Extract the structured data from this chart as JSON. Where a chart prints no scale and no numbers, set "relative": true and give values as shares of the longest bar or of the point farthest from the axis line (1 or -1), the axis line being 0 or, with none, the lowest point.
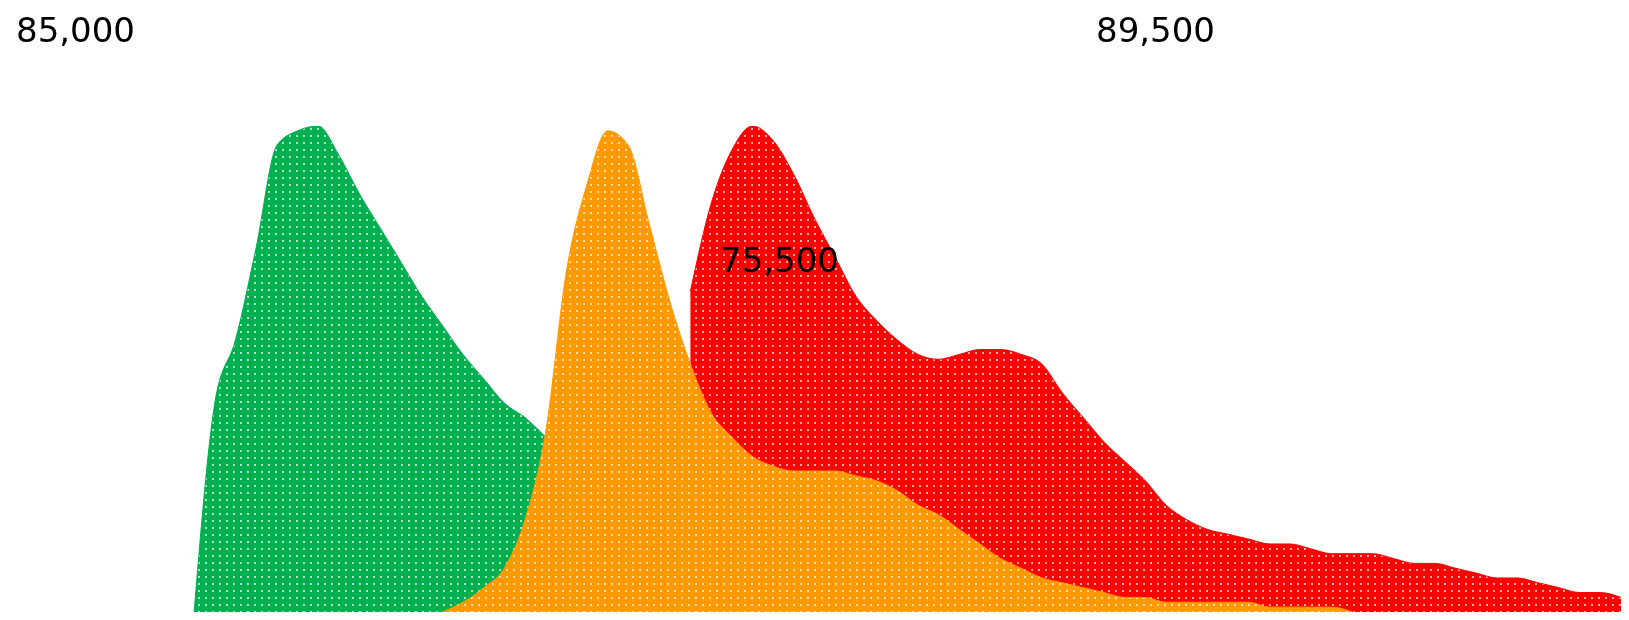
{
  "chart_data": {
    "type": "area",
    "relative": true,
    "categories": [
      null,
      null,
      null,
      null,
      null,
      null,
      null,
      null,
      null,
      null,
      null,
      null,
      null,
      null,
      null,
      null,
      null,
      null,
      null,
      null,
      null,
      null,
      null,
      null,
      null,
      null,
      null,
      null,
      null,
      null,
      null,
      null,
      null,
      null,
      null,
      null,
      null,
      null,
      null,
      null,
      null,
      null,
      null,
      null,
      null,
      null,
      null,
      null,
      null,
      null,
      null,
      null,
      null,
      null,
      null,
      null,
      null,
      null,
      null,
      null,
      null,
      null,
      null,
      null,
      null,
      null,
      null,
      null,
      null,
      null,
      null,
      null,
      null,
      null,
      null,
      null,
      null,
      null,
      null
    ],
    "series": [
      {
        "color": "#00b050",
        "values": [
          null,
          null,
          null,
          null,
          null,
          null,
          null,
          null,
          null,
          0,
          0.43,
          0.56,
          0.75,
          0.96,
          0.99,
          1,
          0.94,
          0.86,
          0.79,
          0.72,
          0.65,
          0.59,
          0.53,
          0.48,
          0.43,
          0.4,
          0.36,
          null,
          null,
          null,
          null,
          null,
          null,
          null,
          null,
          null,
          null,
          null,
          null,
          null,
          null,
          null,
          null,
          null,
          null,
          null,
          null,
          null,
          null,
          null,
          null,
          null,
          null,
          null,
          null,
          null,
          null,
          null,
          null,
          null,
          null,
          null,
          null,
          null,
          null,
          null,
          null,
          null,
          null,
          null,
          null,
          null,
          null,
          null,
          null,
          null,
          null,
          null,
          null
        ]
      },
      {
        "color": "#ff0000",
        "values": [
          null,
          null,
          null,
          null,
          null,
          null,
          null,
          null,
          null,
          null,
          null,
          null,
          null,
          null,
          null,
          null,
          null,
          null,
          null,
          null,
          null,
          null,
          null,
          null,
          null,
          null,
          null,
          null,
          null,
          null,
          null,
          null,
          null,
          0.66,
          0.84,
          0.95,
          1,
          0.97,
          0.9,
          0.81,
          0.73,
          0.65,
          0.6,
          0.56,
          0.53,
          0.52,
          0.53,
          0.54,
          0.54,
          0.53,
          0.51,
          0.45,
          0.4,
          0.35,
          0.31,
          0.27,
          0.22,
          0.19,
          0.17,
          0.16,
          0.15,
          0.14,
          0.14,
          0.13,
          0.12,
          0.12,
          0.12,
          0.11,
          0.1,
          0.1,
          0.09,
          0.08,
          0.07,
          0.07,
          0.06,
          0.05,
          0.04,
          0.04,
          0.03
        ]
      },
      {
        "color": "#ff9900",
        "values": [
          null,
          null,
          null,
          null,
          null,
          null,
          null,
          null,
          null,
          null,
          null,
          null,
          null,
          null,
          null,
          null,
          null,
          null,
          null,
          null,
          null,
          0,
          0.02,
          0.05,
          0.09,
          0.19,
          0.37,
          0.7,
          0.88,
          0.99,
          0.96,
          0.8,
          0.64,
          0.51,
          0.41,
          0.36,
          0.32,
          0.3,
          0.29,
          0.29,
          0.29,
          0.28,
          0.27,
          0.25,
          0.22,
          0.2,
          0.17,
          0.14,
          0.11,
          0.09,
          0.07,
          0.06,
          0.05,
          0.04,
          0.03,
          0.03,
          0.02,
          0.02,
          0.02,
          0.02,
          0.02,
          0.01,
          0.01,
          0.01,
          0.01,
          0,
          null,
          null,
          null,
          null,
          null,
          null,
          null,
          null,
          null,
          null,
          null,
          null,
          null
        ]
      }
    ],
    "annotations": [
      "85,000",
      "89,500",
      "75,500"
    ]
  }
}
